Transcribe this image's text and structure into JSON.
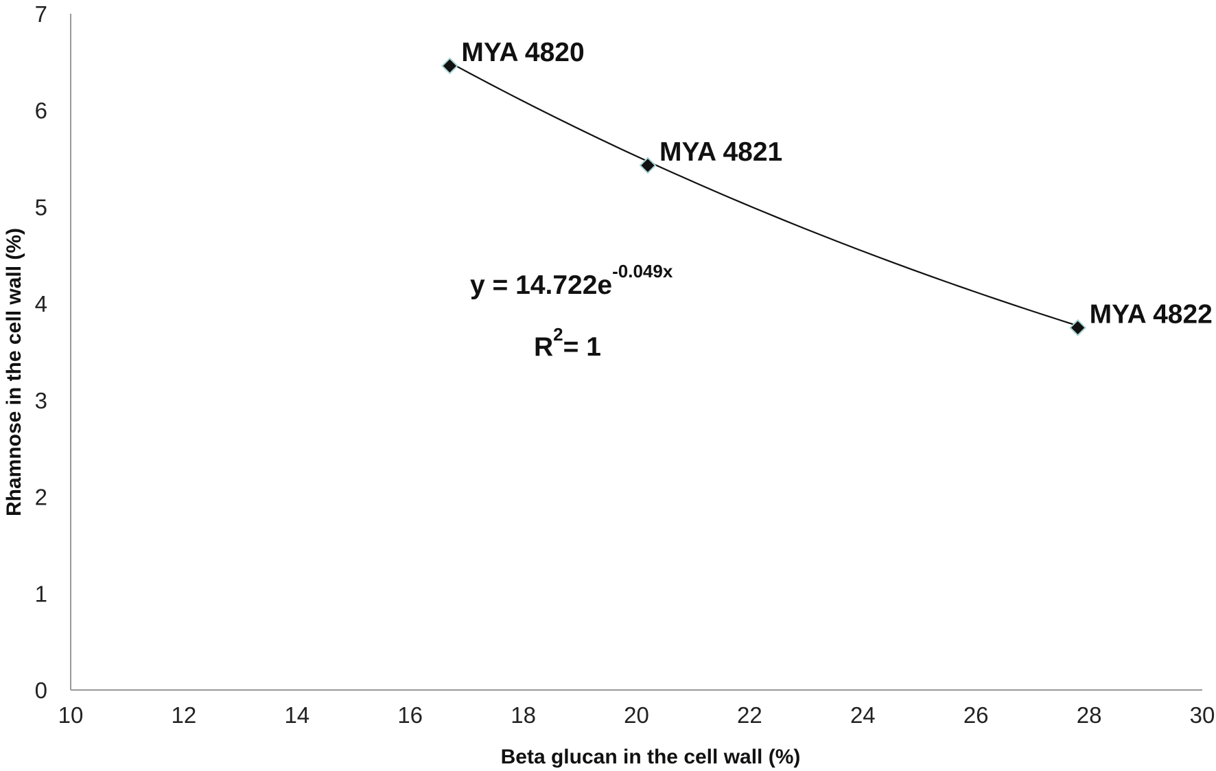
{
  "chart_data": {
    "type": "scatter",
    "xlabel": "Beta glucan in the cell wall (%)",
    "ylabel": "Rhamnose in the cell wall (%)",
    "xlim": [
      10,
      30
    ],
    "ylim": [
      0,
      7
    ],
    "x_ticks": [
      10,
      12,
      14,
      16,
      18,
      20,
      22,
      24,
      26,
      28,
      30
    ],
    "y_ticks": [
      0,
      1,
      2,
      3,
      4,
      5,
      6,
      7
    ],
    "grid": false,
    "points": [
      {
        "label": "MYA 4820",
        "x": 16.7,
        "y": 6.46
      },
      {
        "label": "MYA 4821",
        "x": 20.2,
        "y": 5.43
      },
      {
        "label": "MYA 4822",
        "x": 27.8,
        "y": 3.75
      }
    ],
    "trendline": {
      "type": "exponential",
      "a": 14.722,
      "b": -0.049,
      "equation_prefix": "y = 14.722e",
      "equation_exponent": "-0.049x",
      "r2_prefix": "R",
      "r2_exponent": "2",
      "r2_suffix": "= 1"
    },
    "colors": {
      "axis": "#999999",
      "marker": "#111111",
      "marker_outline": "#a9d3d3",
      "trendline": "#111111"
    }
  }
}
